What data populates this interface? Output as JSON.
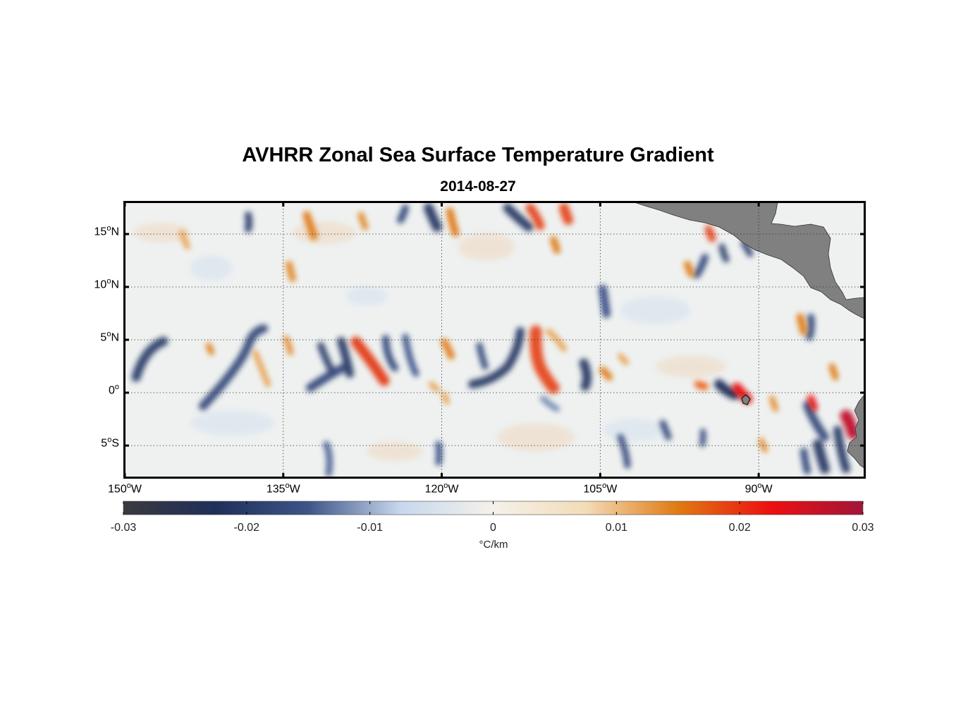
{
  "title": "AVHRR Zonal Sea Surface Temperature Gradient",
  "subtitle": "2014-08-27",
  "map": {
    "lon_range": [
      -150,
      -80
    ],
    "lat_range": [
      -8,
      18
    ],
    "lat_ticks": [
      {
        "value": 15,
        "deg": "15",
        "hemi": "N"
      },
      {
        "value": 10,
        "deg": "10",
        "hemi": "N"
      },
      {
        "value": 5,
        "deg": "5",
        "hemi": "N"
      },
      {
        "value": 0,
        "deg": "0",
        "hemi": ""
      },
      {
        "value": -5,
        "deg": "5",
        "hemi": "S"
      }
    ],
    "lon_ticks": [
      {
        "value": -150,
        "deg": "150",
        "hemi": "W"
      },
      {
        "value": -135,
        "deg": "135",
        "hemi": "W"
      },
      {
        "value": -120,
        "deg": "120",
        "hemi": "W"
      },
      {
        "value": -105,
        "deg": "105",
        "hemi": "W"
      },
      {
        "value": -90,
        "deg": "90",
        "hemi": "W"
      }
    ],
    "grid": true,
    "land_color": "#808080"
  },
  "colorbar": {
    "min": -0.03,
    "max": 0.03,
    "ticks": [
      "-0.03",
      "-0.02",
      "-0.01",
      "0",
      "0.01",
      "0.02",
      "0.03"
    ],
    "unit": "°C/km",
    "colormap": [
      "#3a3a3f",
      "#1f2f5a",
      "#3e5588",
      "#c7d8ee",
      "#f4f1ea",
      "#f3dcb8",
      "#e07a12",
      "#ec1010",
      "#a3143a"
    ]
  }
}
